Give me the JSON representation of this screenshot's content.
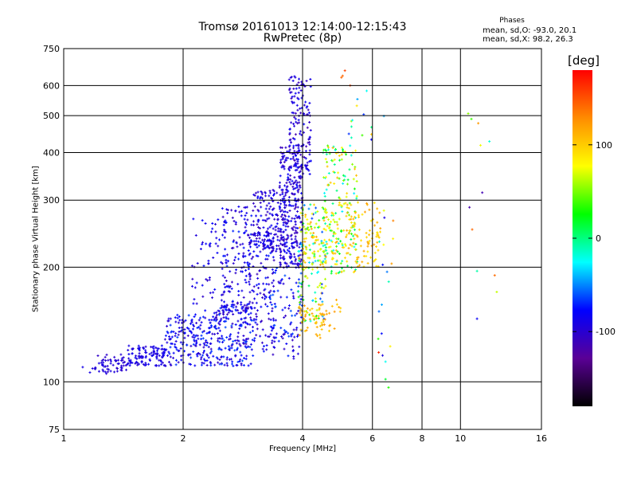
{
  "chart_data": {
    "type": "scatter",
    "title": "Tromsø 20161013 12:14:00-12:15:43",
    "subtitle": "RwPretec (8p)",
    "xlabel": "Frequency [MHz]",
    "ylabel": "Stationary phase Virtual Height [km]",
    "x_scale": "log",
    "y_scale": "log",
    "xlim": [
      1,
      16
    ],
    "ylim": [
      75,
      750
    ],
    "x_ticks": [
      1,
      2,
      4,
      6,
      8,
      10,
      16
    ],
    "y_ticks": [
      75,
      100,
      200,
      300,
      400,
      500,
      600,
      750
    ],
    "grid": true,
    "stats": {
      "heading": "Phases",
      "line_o": "mean, sd,O: -93.0, 20.1",
      "line_x": "mean, sd,X:  98.2, 26.3"
    },
    "colorbar": {
      "label": "[deg]",
      "ticks": [
        100,
        0,
        -100
      ],
      "range": [
        -180,
        180
      ],
      "colors": [
        "#000000",
        "#5a0096",
        "#0000ff",
        "#00ffff",
        "#00ff00",
        "#ffff00",
        "#ff8c00",
        "#ff0000"
      ]
    },
    "clusters": [
      {
        "x": [
          1.1,
          1.2
        ],
        "y": [
          104,
          110
        ],
        "phase": [
          -100,
          -85
        ],
        "n": 4
      },
      {
        "x": [
          1.2,
          1.45
        ],
        "y": [
          105,
          118
        ],
        "phase": [
          -105,
          -90
        ],
        "n": 60
      },
      {
        "x": [
          1.45,
          1.8
        ],
        "y": [
          110,
          125
        ],
        "phase": [
          -100,
          -80
        ],
        "n": 110
      },
      {
        "x": [
          1.8,
          2.4
        ],
        "y": [
          110,
          150
        ],
        "phase": [
          -105,
          -65
        ],
        "n": 190
      },
      {
        "x": [
          2.4,
          3.0
        ],
        "y": [
          110,
          160
        ],
        "phase": [
          -110,
          -60
        ],
        "n": 190
      },
      {
        "x": [
          2.1,
          2.6
        ],
        "y": [
          150,
          270
        ],
        "phase": [
          -105,
          -75
        ],
        "n": 70
      },
      {
        "x": [
          2.5,
          3.0
        ],
        "y": [
          150,
          290
        ],
        "phase": [
          -110,
          -70
        ],
        "n": 140
      },
      {
        "x": [
          2.9,
          3.4
        ],
        "y": [
          120,
          250
        ],
        "phase": [
          -110,
          -70
        ],
        "n": 150
      },
      {
        "x": [
          3.0,
          3.6
        ],
        "y": [
          220,
          320
        ],
        "phase": [
          -110,
          -80
        ],
        "n": 150
      },
      {
        "x": [
          3.3,
          4.0
        ],
        "y": [
          115,
          200
        ],
        "phase": [
          -110,
          -60
        ],
        "n": 110
      },
      {
        "x": [
          3.5,
          4.0
        ],
        "y": [
          200,
          420
        ],
        "phase": [
          -115,
          -75
        ],
        "n": 300
      },
      {
        "x": [
          3.7,
          4.2
        ],
        "y": [
          350,
          640
        ],
        "phase": [
          -115,
          -80
        ],
        "n": 140
      },
      {
        "x": [
          3.9,
          4.6
        ],
        "y": [
          140,
          300
        ],
        "phase": [
          -70,
          110
        ],
        "n": 140
      },
      {
        "x": [
          4.0,
          4.9
        ],
        "y": [
          200,
          280
        ],
        "phase": [
          60,
          120
        ],
        "n": 80
      },
      {
        "x": [
          4.5,
          5.5
        ],
        "y": [
          190,
          420
        ],
        "phase": [
          -30,
          110
        ],
        "n": 180
      },
      {
        "x": [
          5.0,
          6.3
        ],
        "y": [
          200,
          300
        ],
        "phase": [
          85,
          120
        ],
        "n": 100
      },
      {
        "x": [
          3.9,
          4.5
        ],
        "y": [
          130,
          160
        ],
        "phase": [
          95,
          125
        ],
        "n": 40
      },
      {
        "x": [
          4.3,
          5.0
        ],
        "y": [
          135,
          170
        ],
        "phase": [
          95,
          125
        ],
        "n": 25
      },
      {
        "x": [
          5.0,
          5.4
        ],
        "y": [
          600,
          700
        ],
        "phase": [
          130,
          170
        ],
        "n": 4
      },
      {
        "x": [
          5.2,
          6.5
        ],
        "y": [
          430,
          600
        ],
        "phase": [
          -100,
          120
        ],
        "n": 14
      },
      {
        "x": [
          6.2,
          6.8
        ],
        "y": [
          90,
          330
        ],
        "phase": [
          -100,
          170
        ],
        "n": 20
      },
      {
        "x": [
          10.2,
          12.5
        ],
        "y": [
          140,
          560
        ],
        "phase": [
          -120,
          170
        ],
        "n": 12
      }
    ]
  }
}
